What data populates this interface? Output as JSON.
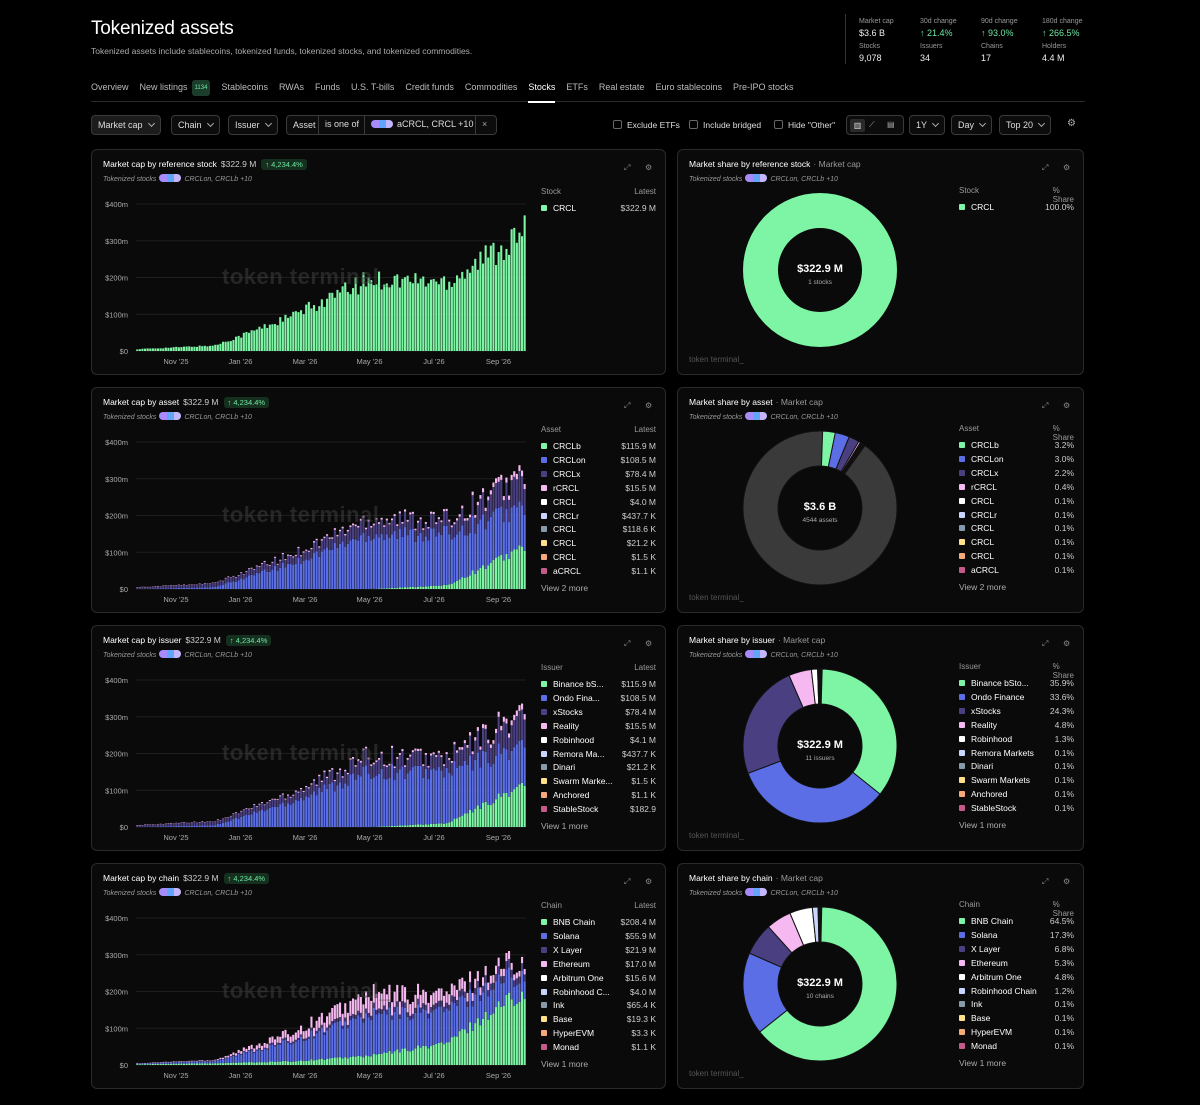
{
  "header": {
    "title": "Tokenized assets",
    "subtitle": "Tokenized assets include stablecoins, tokenized funds, tokenized stocks, and tokenized commodities."
  },
  "stats": [
    {
      "label": "Market cap",
      "value": "$3.6 B",
      "up": false
    },
    {
      "label": "30d change",
      "value": "↑ 21.4%",
      "up": true
    },
    {
      "label": "90d change",
      "value": "↑ 93.0%",
      "up": true
    },
    {
      "label": "180d change",
      "value": "↑ 266.5%",
      "up": true
    },
    {
      "label": "Stocks",
      "value": "9,078",
      "up": false
    },
    {
      "label": "Issuers",
      "value": "34",
      "up": false
    },
    {
      "label": "Chains",
      "value": "17",
      "up": false
    },
    {
      "label": "Holders",
      "value": "4.4 M",
      "up": false
    }
  ],
  "tabs": [
    {
      "label": "Overview",
      "badge": "",
      "active": false
    },
    {
      "label": "New listings",
      "badge": "1134",
      "active": false
    },
    {
      "label": "Stablecoins",
      "badge": "",
      "active": false
    },
    {
      "label": "RWAs",
      "badge": "",
      "active": false
    },
    {
      "label": "Funds",
      "badge": "",
      "active": false
    },
    {
      "label": "U.S. T-bills",
      "badge": "",
      "active": false
    },
    {
      "label": "Credit funds",
      "badge": "",
      "active": false
    },
    {
      "label": "Commodities",
      "badge": "",
      "active": false
    },
    {
      "label": "Stocks",
      "badge": "",
      "active": true
    },
    {
      "label": "ETFs",
      "badge": "",
      "active": false
    },
    {
      "label": "Real estate",
      "badge": "",
      "active": false
    },
    {
      "label": "Euro stablecoins",
      "badge": "",
      "active": false
    },
    {
      "label": "Pre-IPO stocks",
      "badge": "",
      "active": false
    }
  ],
  "filters": {
    "metric": "Market cap",
    "chain": "Chain",
    "issuer": "Issuer",
    "asset_label": "Asset",
    "asset_op": "is one of",
    "asset_value": "aCRCL, CRCL +10",
    "exclude_etfs": "Exclude ETFs",
    "include_bridged": "Include bridged",
    "hide_other": "Hide \"Other\"",
    "range": "1Y",
    "granularity": "Day",
    "top": "Top 20",
    "close": "×"
  },
  "common": {
    "subtitle_label": "Tokenized stocks",
    "subtitle_assets": "CRCLon, CRCLb +10",
    "watermark": "token terminal_",
    "latest": "Latest",
    "share": "% Share",
    "change": "↑ 4,234.4%",
    "expand_icon": "expand-icon",
    "settings_icon": "gear-icon"
  },
  "axis": {
    "y": [
      "$400m",
      "$300m",
      "$200m",
      "$100m",
      "$0"
    ],
    "x": [
      "Nov '25",
      "Jan '26",
      "Mar '26",
      "May '26",
      "Jul '26",
      "Sep '26"
    ]
  },
  "colors": [
    "#7df5a5",
    "#5b6ee6",
    "#4a3f80",
    "#f5b8f0",
    "#ffffff",
    "#c9d4ff",
    "#8899aa",
    "#ffe08a",
    "#f5a97a",
    "#c45a8a"
  ],
  "cards": [
    {
      "bar_title": "Market cap by reference stock",
      "bar_value": "$322.9 M",
      "share_title": "Market share by reference stock",
      "share_metric": "· Market cap",
      "legend_head": "Stock",
      "bar_legend": [
        {
          "name": "CRCL",
          "value": "$322.9 M"
        }
      ],
      "share_legend": [
        {
          "name": "CRCL",
          "value": "100.0%"
        }
      ],
      "bar_more": "",
      "share_more": "",
      "donut": {
        "center": "$322.9 M",
        "label": "1 stocks",
        "slices": [
          100.0
        ],
        "other": 0
      }
    },
    {
      "bar_title": "Market cap by asset",
      "bar_value": "$322.9 M",
      "share_title": "Market share by asset",
      "share_metric": "· Market cap",
      "legend_head": "Asset",
      "bar_legend": [
        {
          "name": "CRCLb",
          "value": "$115.9 M"
        },
        {
          "name": "CRCLon",
          "value": "$108.5 M"
        },
        {
          "name": "CRCLx",
          "value": "$78.4 M"
        },
        {
          "name": "rCRCL",
          "value": "$15.5 M"
        },
        {
          "name": "CRCL",
          "value": "$4.0 M"
        },
        {
          "name": "CRCLr",
          "value": "$437.7 K"
        },
        {
          "name": "CRCL",
          "value": "$118.6 K"
        },
        {
          "name": "CRCL",
          "value": "$21.2 K"
        },
        {
          "name": "CRCL",
          "value": "$1.5 K"
        },
        {
          "name": "aCRCL",
          "value": "$1.1 K"
        }
      ],
      "share_legend": [
        {
          "name": "CRCLb",
          "value": "3.2%"
        },
        {
          "name": "CRCLon",
          "value": "3.0%"
        },
        {
          "name": "CRCLx",
          "value": "2.2%"
        },
        {
          "name": "rCRCL",
          "value": "0.4%"
        },
        {
          "name": "CRCL",
          "value": "0.1%"
        },
        {
          "name": "CRCLr",
          "value": "0.1%"
        },
        {
          "name": "CRCL",
          "value": "0.1%"
        },
        {
          "name": "CRCL",
          "value": "0.1%"
        },
        {
          "name": "CRCL",
          "value": "0.1%"
        },
        {
          "name": "aCRCL",
          "value": "0.1%"
        }
      ],
      "bar_more": "View 2 more",
      "share_more": "View 2 more",
      "donut": {
        "center": "$3.6 B",
        "label": "4544 assets",
        "slices": [
          3.2,
          3.0,
          2.2,
          0.4,
          0.1,
          0.1,
          0.1,
          0.1,
          0.1,
          0.1
        ],
        "other": 90.6
      }
    },
    {
      "bar_title": "Market cap by issuer",
      "bar_value": "$322.9 M",
      "share_title": "Market share by issuer",
      "share_metric": "· Market cap",
      "legend_head": "Issuer",
      "bar_legend": [
        {
          "name": "Binance bS...",
          "value": "$115.9 M"
        },
        {
          "name": "Ondo Fina...",
          "value": "$108.5 M"
        },
        {
          "name": "xStocks",
          "value": "$78.4 M"
        },
        {
          "name": "Reality",
          "value": "$15.5 M"
        },
        {
          "name": "Robinhood",
          "value": "$4.1 M"
        },
        {
          "name": "Remora Ma...",
          "value": "$437.7 K"
        },
        {
          "name": "Dinari",
          "value": "$21.2 K"
        },
        {
          "name": "Swarm Marke...",
          "value": "$1.5 K"
        },
        {
          "name": "Anchored",
          "value": "$1.1 K"
        },
        {
          "name": "StableStock",
          "value": "$182.9"
        }
      ],
      "share_legend": [
        {
          "name": "Binance bSto...",
          "value": "35.9%"
        },
        {
          "name": "Ondo Finance",
          "value": "33.6%"
        },
        {
          "name": "xStocks",
          "value": "24.3%"
        },
        {
          "name": "Reality",
          "value": "4.8%"
        },
        {
          "name": "Robinhood",
          "value": "1.3%"
        },
        {
          "name": "Remora Markets",
          "value": "0.1%"
        },
        {
          "name": "Dinari",
          "value": "0.1%"
        },
        {
          "name": "Swarm Markets",
          "value": "0.1%"
        },
        {
          "name": "Anchored",
          "value": "0.1%"
        },
        {
          "name": "StableStock",
          "value": "0.1%"
        }
      ],
      "bar_more": "View 1 more",
      "share_more": "View 1 more",
      "donut": {
        "center": "$322.9 M",
        "label": "11 issuers",
        "slices": [
          35.9,
          33.6,
          24.3,
          4.8,
          1.3,
          0.1,
          0.1,
          0.1,
          0.1,
          0.1
        ],
        "other": 0
      }
    },
    {
      "bar_title": "Market cap by chain",
      "bar_value": "$322.9 M",
      "share_title": "Market share by chain",
      "share_metric": "· Market cap",
      "legend_head": "Chain",
      "bar_legend": [
        {
          "name": "BNB Chain",
          "value": "$208.4 M"
        },
        {
          "name": "Solana",
          "value": "$55.9 M"
        },
        {
          "name": "X Layer",
          "value": "$21.9 M"
        },
        {
          "name": "Ethereum",
          "value": "$17.0 M"
        },
        {
          "name": "Arbitrum One",
          "value": "$15.6 M"
        },
        {
          "name": "Robinhood C...",
          "value": "$4.0 M"
        },
        {
          "name": "Ink",
          "value": "$65.4 K"
        },
        {
          "name": "Base",
          "value": "$19.3 K"
        },
        {
          "name": "HyperEVM",
          "value": "$3.3 K"
        },
        {
          "name": "Monad",
          "value": "$1.1 K"
        }
      ],
      "share_legend": [
        {
          "name": "BNB Chain",
          "value": "64.5%"
        },
        {
          "name": "Solana",
          "value": "17.3%"
        },
        {
          "name": "X Layer",
          "value": "6.8%"
        },
        {
          "name": "Ethereum",
          "value": "5.3%"
        },
        {
          "name": "Arbitrum One",
          "value": "4.8%"
        },
        {
          "name": "Robinhood Chain",
          "value": "1.2%"
        },
        {
          "name": "Ink",
          "value": "0.1%"
        },
        {
          "name": "Base",
          "value": "0.1%"
        },
        {
          "name": "HyperEVM",
          "value": "0.1%"
        },
        {
          "name": "Monad",
          "value": "0.1%"
        }
      ],
      "bar_more": "View 1 more",
      "share_more": "View 1 more",
      "donut": {
        "center": "$322.9 M",
        "label": "10 chains",
        "slices": [
          64.5,
          17.3,
          6.8,
          5.3,
          4.8,
          1.2,
          0.1,
          0.1,
          0.1,
          0.1
        ],
        "other": 0
      }
    }
  ],
  "chart_data": [
    {
      "type": "bar",
      "title": "Market cap by reference stock",
      "x": [
        "Nov '25",
        "Jan '26",
        "Mar '26",
        "May '26",
        "Jul '26",
        "Sep '26"
      ],
      "ylim": [
        0,
        400
      ],
      "series": [
        {
          "name": "CRCL",
          "values": [
            5,
            15,
            95,
            195,
            190,
            322.9
          ]
        }
      ]
    },
    {
      "type": "bar",
      "title": "Market cap by asset",
      "x": [
        "Nov '25",
        "Jan '26",
        "Mar '26",
        "May '26",
        "Jul '26",
        "Sep '26"
      ],
      "ylim": [
        0,
        400
      ],
      "series": [
        {
          "name": "CRCLb",
          "values": [
            0,
            0,
            0,
            0,
            10,
            115.9
          ]
        },
        {
          "name": "CRCLon",
          "values": [
            0,
            5,
            70,
            150,
            140,
            108.5
          ]
        },
        {
          "name": "CRCLx",
          "values": [
            4,
            10,
            22,
            40,
            35,
            78.4
          ]
        },
        {
          "name": "rCRCL",
          "values": [
            1,
            1,
            3,
            5,
            5,
            15.5
          ]
        }
      ]
    },
    {
      "type": "bar",
      "title": "Market cap by issuer",
      "x": [
        "Nov '25",
        "Jan '26",
        "Mar '26",
        "May '26",
        "Jul '26",
        "Sep '26"
      ],
      "ylim": [
        0,
        400
      ],
      "series": [
        {
          "name": "Binance bS...",
          "values": [
            0,
            0,
            0,
            0,
            10,
            115.9
          ]
        },
        {
          "name": "Ondo Fina...",
          "values": [
            0,
            5,
            70,
            150,
            140,
            108.5
          ]
        },
        {
          "name": "xStocks",
          "values": [
            4,
            10,
            22,
            40,
            35,
            78.4
          ]
        },
        {
          "name": "Reality",
          "values": [
            1,
            1,
            3,
            5,
            5,
            15.5
          ]
        }
      ]
    },
    {
      "type": "bar",
      "title": "Market cap by chain",
      "x": [
        "Nov '25",
        "Jan '26",
        "Mar '26",
        "May '26",
        "Jul '26",
        "Sep '26"
      ],
      "ylim": [
        0,
        400
      ],
      "series": [
        {
          "name": "BNB Chain",
          "values": [
            2,
            5,
            10,
            25,
            60,
            208.4
          ]
        },
        {
          "name": "Solana",
          "values": [
            2,
            6,
            55,
            110,
            90,
            55.9
          ]
        },
        {
          "name": "X Layer",
          "values": [
            0,
            1,
            5,
            12,
            15,
            21.9
          ]
        },
        {
          "name": "Ethereum",
          "values": [
            1,
            2,
            20,
            45,
            30,
            17.0
          ]
        }
      ]
    },
    {
      "type": "pie",
      "title": "Market share by reference stock",
      "labels": [
        "CRCL"
      ],
      "values": [
        100.0
      ]
    },
    {
      "type": "pie",
      "title": "Market share by asset",
      "labels": [
        "CRCLb",
        "CRCLon",
        "CRCLx",
        "rCRCL",
        "CRCL",
        "CRCLr",
        "CRCL",
        "CRCL",
        "CRCL",
        "aCRCL"
      ],
      "values": [
        3.2,
        3.0,
        2.2,
        0.4,
        0.1,
        0.1,
        0.1,
        0.1,
        0.1,
        0.1
      ]
    },
    {
      "type": "pie",
      "title": "Market share by issuer",
      "labels": [
        "Binance bSto...",
        "Ondo Finance",
        "xStocks",
        "Reality",
        "Robinhood",
        "Remora Markets",
        "Dinari",
        "Swarm Markets",
        "Anchored",
        "StableStock"
      ],
      "values": [
        35.9,
        33.6,
        24.3,
        4.8,
        1.3,
        0.1,
        0.1,
        0.1,
        0.1,
        0.1
      ]
    },
    {
      "type": "pie",
      "title": "Market share by chain",
      "labels": [
        "BNB Chain",
        "Solana",
        "X Layer",
        "Ethereum",
        "Arbitrum One",
        "Robinhood Chain",
        "Ink",
        "Base",
        "HyperEVM",
        "Monad"
      ],
      "values": [
        64.5,
        17.3,
        6.8,
        5.3,
        4.8,
        1.2,
        0.1,
        0.1,
        0.1,
        0.1
      ]
    }
  ]
}
